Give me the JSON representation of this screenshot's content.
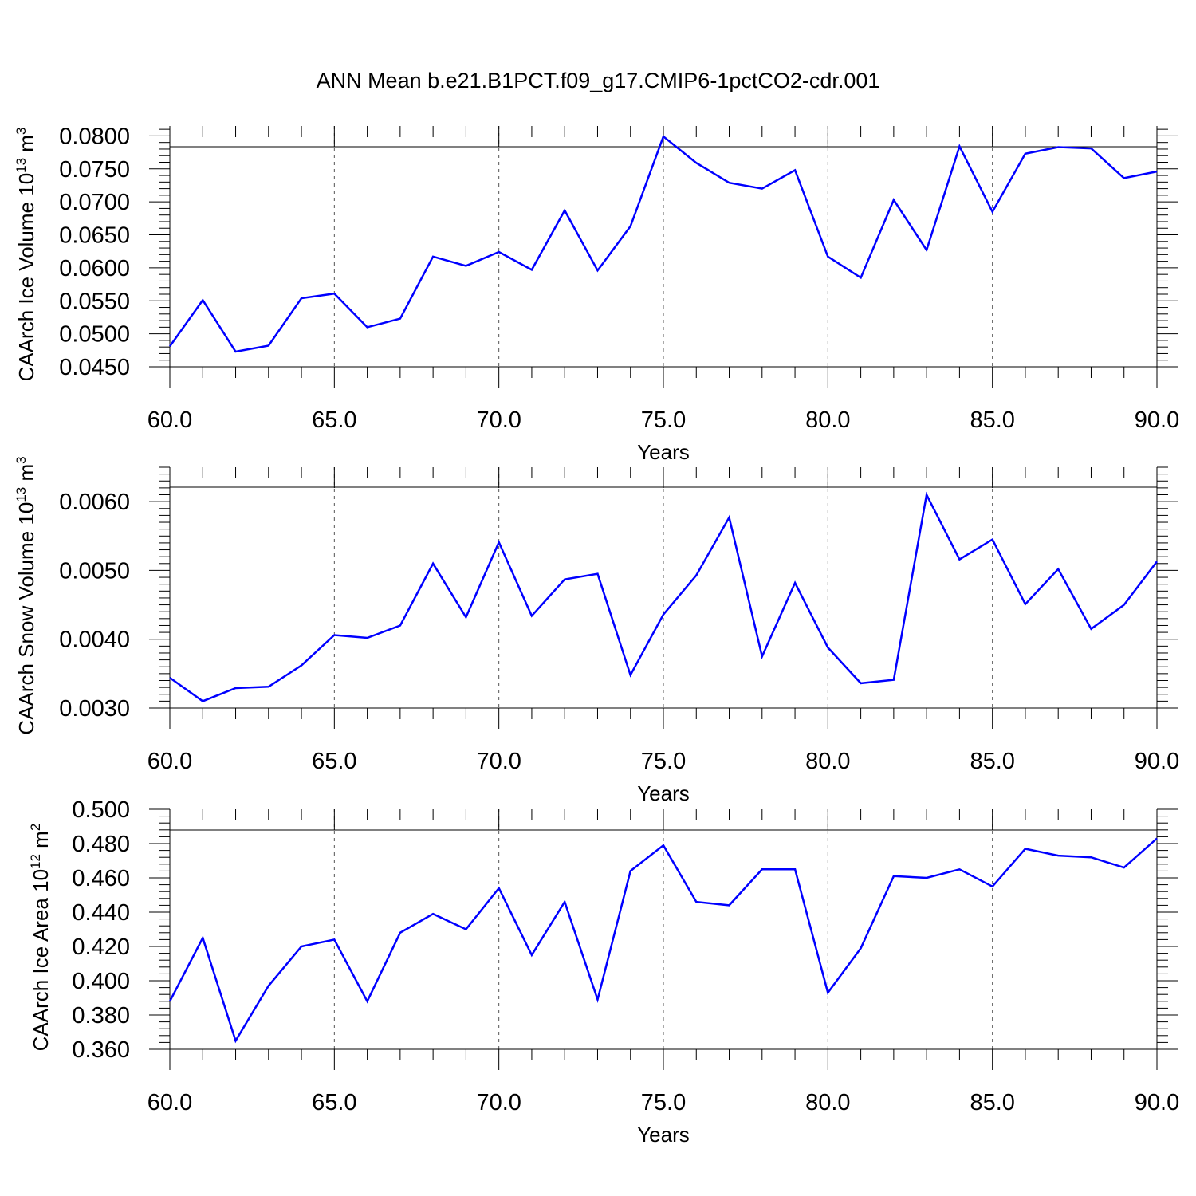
{
  "figure": {
    "title": "ANN Mean b.e21.B1PCT.f09_g17.CMIP6-1pctCO2-cdr.001",
    "line_color": "#0000ff"
  },
  "chart_data": [
    {
      "type": "line",
      "title": "",
      "xlabel": "Years",
      "ylabel": {
        "text": "CAArch Ice Volume 10",
        "exp": "13",
        "unit": "m",
        "unit_exp": "3"
      },
      "xlim": [
        60,
        90
      ],
      "ylim": [
        0.045,
        0.0815
      ],
      "xticks": [
        60,
        65,
        70,
        75,
        80,
        85,
        90
      ],
      "xtick_labels": [
        "60.0",
        "65.0",
        "70.0",
        "75.0",
        "80.0",
        "85.0",
        "90.0"
      ],
      "yticks": [
        0.045,
        0.05,
        0.055,
        0.06,
        0.065,
        0.07,
        0.075,
        0.08
      ],
      "ytick_labels": [
        "0.0450",
        "0.0500",
        "0.0550",
        "0.0600",
        "0.0650",
        "0.0700",
        "0.0750",
        "0.0800"
      ],
      "grid": "vertical dashed at major x ticks",
      "x": [
        60,
        61,
        62,
        63,
        64,
        65,
        66,
        67,
        68,
        69,
        70,
        71,
        72,
        73,
        74,
        75,
        76,
        77,
        78,
        79,
        80,
        81,
        82,
        83,
        84,
        85,
        86,
        87,
        88,
        89,
        90
      ],
      "values": [
        0.0481,
        0.0551,
        0.0473,
        0.0482,
        0.0554,
        0.0561,
        0.051,
        0.0523,
        0.0617,
        0.0603,
        0.0624,
        0.0597,
        0.0687,
        0.0596,
        0.0663,
        0.0799,
        0.0759,
        0.0729,
        0.072,
        0.0748,
        0.0617,
        0.0585,
        0.0703,
        0.0627,
        0.0784,
        0.0685,
        0.0773,
        0.0783,
        0.0781,
        0.0736,
        0.0746
      ]
    },
    {
      "type": "line",
      "title": "",
      "xlabel": "Years",
      "ylabel": {
        "text": "CAArch Snow Volume 10",
        "exp": "13",
        "unit": "m",
        "unit_exp": "3"
      },
      "xlim": [
        60,
        90
      ],
      "ylim": [
        0.003,
        0.0065
      ],
      "xticks": [
        60,
        65,
        70,
        75,
        80,
        85,
        90
      ],
      "xtick_labels": [
        "60.0",
        "65.0",
        "70.0",
        "75.0",
        "80.0",
        "85.0",
        "90.0"
      ],
      "yticks": [
        0.003,
        0.004,
        0.005,
        0.006
      ],
      "ytick_labels": [
        "0.0030",
        "0.0040",
        "0.0050",
        "0.0060"
      ],
      "grid": "vertical dashed at major x ticks",
      "x": [
        60,
        61,
        62,
        63,
        64,
        65,
        66,
        67,
        68,
        69,
        70,
        71,
        72,
        73,
        74,
        75,
        76,
        77,
        78,
        79,
        80,
        81,
        82,
        83,
        84,
        85,
        86,
        87,
        88,
        89,
        90
      ],
      "values": [
        0.00344,
        0.0031,
        0.00329,
        0.00331,
        0.00362,
        0.00406,
        0.00402,
        0.0042,
        0.0051,
        0.00432,
        0.00541,
        0.00434,
        0.00487,
        0.00495,
        0.00348,
        0.00436,
        0.00493,
        0.00577,
        0.00375,
        0.00482,
        0.00388,
        0.00336,
        0.00341,
        0.0061,
        0.00516,
        0.00545,
        0.00451,
        0.00502,
        0.00415,
        0.0045,
        0.00513
      ]
    },
    {
      "type": "line",
      "title": "",
      "xlabel": "Years",
      "ylabel": {
        "text": "CAArch Ice Area 10",
        "exp": "12",
        "unit": "m",
        "unit_exp": "2"
      },
      "xlim": [
        60,
        90
      ],
      "ylim": [
        0.36,
        0.5
      ],
      "xticks": [
        60,
        65,
        70,
        75,
        80,
        85,
        90
      ],
      "xtick_labels": [
        "60.0",
        "65.0",
        "70.0",
        "75.0",
        "80.0",
        "85.0",
        "90.0"
      ],
      "yticks": [
        0.36,
        0.38,
        0.4,
        0.42,
        0.44,
        0.46,
        0.48,
        0.5
      ],
      "ytick_labels": [
        "0.360",
        "0.380",
        "0.400",
        "0.420",
        "0.440",
        "0.460",
        "0.480",
        "0.500"
      ],
      "grid": "vertical dashed at major x ticks",
      "x": [
        60,
        61,
        62,
        63,
        64,
        65,
        66,
        67,
        68,
        69,
        70,
        71,
        72,
        73,
        74,
        75,
        76,
        77,
        78,
        79,
        80,
        81,
        82,
        83,
        84,
        85,
        86,
        87,
        88,
        89,
        90
      ],
      "values": [
        0.388,
        0.425,
        0.365,
        0.397,
        0.42,
        0.424,
        0.388,
        0.428,
        0.439,
        0.43,
        0.454,
        0.415,
        0.446,
        0.389,
        0.464,
        0.479,
        0.446,
        0.444,
        0.465,
        0.465,
        0.393,
        0.419,
        0.461,
        0.46,
        0.465,
        0.455,
        0.477,
        0.473,
        0.472,
        0.466,
        0.483
      ]
    }
  ]
}
